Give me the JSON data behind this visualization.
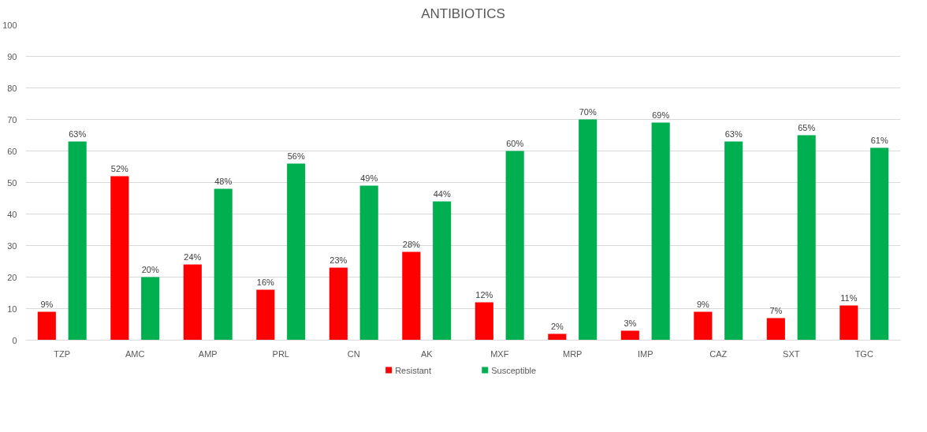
{
  "chart_data": {
    "type": "bar",
    "title": "ANTIBIOTICS",
    "categories": [
      "TZP",
      "AMC",
      "AMP",
      "PRL",
      "CN",
      "AK",
      "MXF",
      "MRP",
      "IMP",
      "CAZ",
      "SXT",
      "TGC"
    ],
    "series": [
      {
        "name": "Resistant",
        "color": "#ff0000",
        "values": [
          9,
          52,
          24,
          16,
          23,
          28,
          12,
          2,
          3,
          9,
          7,
          11
        ],
        "value_labels": [
          "9%",
          "52%",
          "24%",
          "16%",
          "23%",
          "28%",
          "12%",
          "2%",
          "3%",
          "9%",
          "7%",
          "11%"
        ]
      },
      {
        "name": "Susceptible",
        "color": "#00b050",
        "values": [
          63,
          20,
          48,
          56,
          49,
          44,
          60,
          70,
          69,
          63,
          65,
          61
        ],
        "value_labels": [
          "63%",
          "20%",
          "48%",
          "56%",
          "49%",
          "44%",
          "60%",
          "70%",
          "69%",
          "63%",
          "65%",
          "61%"
        ]
      }
    ],
    "ylim": [
      0,
      100
    ],
    "yticks": [
      0,
      10,
      20,
      30,
      40,
      50,
      60,
      70,
      80,
      90,
      100
    ],
    "grid": "y",
    "legend": "bottom"
  }
}
